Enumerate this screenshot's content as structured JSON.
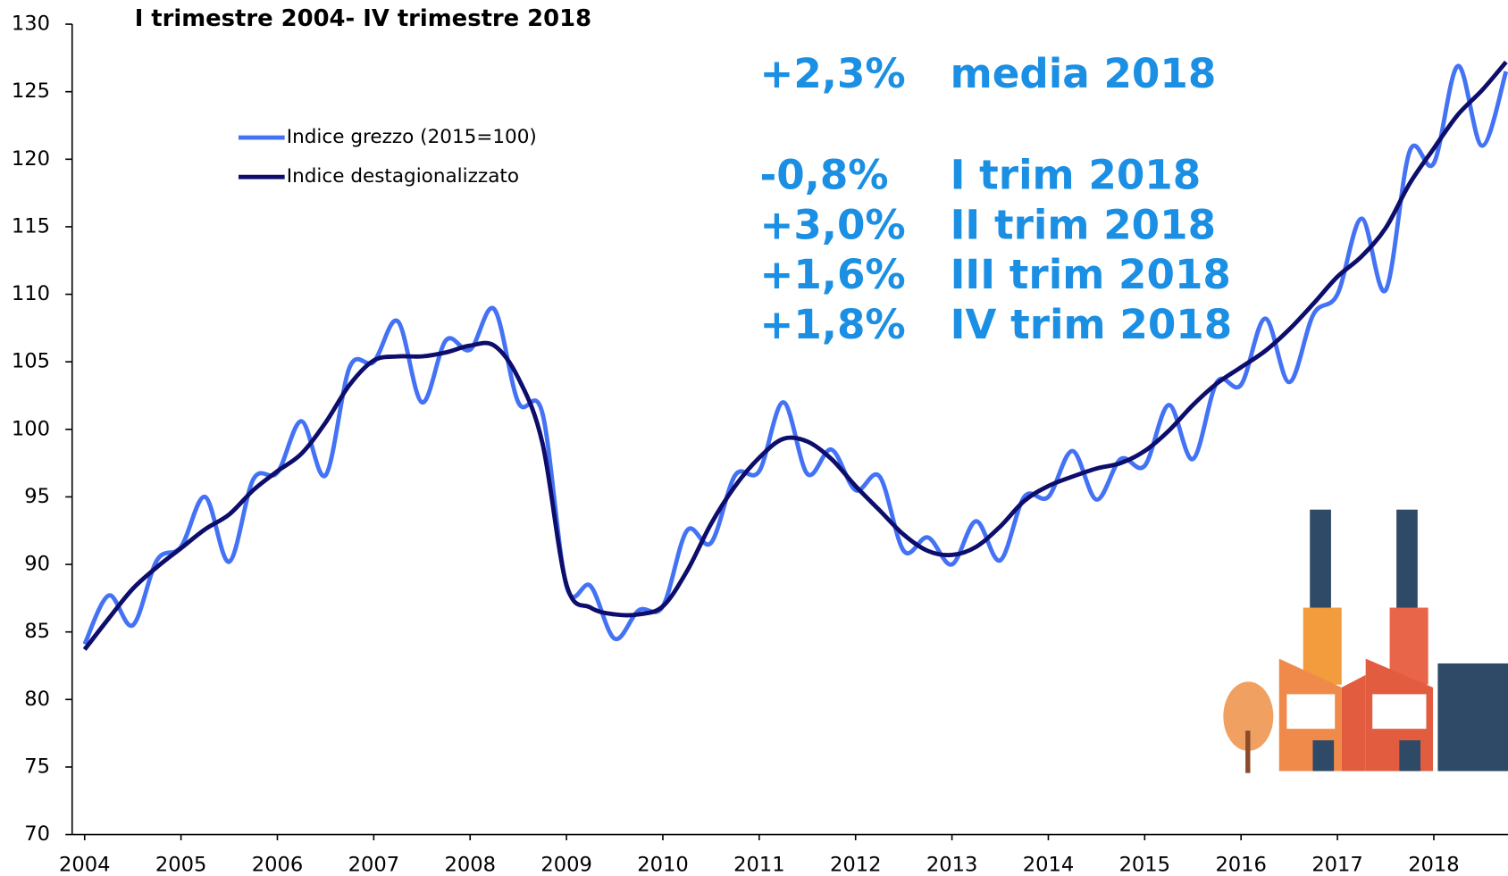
{
  "chart_data": {
    "type": "line",
    "title": "I trimestre 2004- IV trimestre 2018",
    "x": [
      2004,
      2004.25,
      2004.5,
      2004.75,
      2005,
      2005.25,
      2005.5,
      2005.75,
      2006,
      2006.25,
      2006.5,
      2006.75,
      2007,
      2007.25,
      2007.5,
      2007.75,
      2008,
      2008.25,
      2008.5,
      2008.75,
      2009,
      2009.25,
      2009.5,
      2009.75,
      2010,
      2010.25,
      2010.5,
      2010.75,
      2011,
      2011.25,
      2011.5,
      2011.75,
      2012,
      2012.25,
      2012.5,
      2012.75,
      2013,
      2013.25,
      2013.5,
      2013.75,
      2014,
      2014.25,
      2014.5,
      2014.75,
      2015,
      2015.25,
      2015.5,
      2015.75,
      2016,
      2016.25,
      2016.5,
      2016.75,
      2017,
      2017.25,
      2017.5,
      2017.75,
      2018,
      2018.25,
      2018.5,
      2018.75
    ],
    "series": [
      {
        "name": "Indice grezzo (2015=100)",
        "color": "#4472f5",
        "values": [
          84.1,
          87.7,
          85.5,
          90.3,
          91.3,
          95.0,
          90.2,
          96.3,
          96.8,
          100.6,
          96.6,
          104.6,
          105.0,
          108.0,
          102.0,
          106.6,
          105.9,
          108.9,
          102.0,
          101.2,
          88.4,
          88.4,
          84.5,
          86.6,
          86.9,
          92.5,
          91.6,
          96.6,
          96.9,
          102.0,
          96.7,
          98.5,
          95.5,
          96.5,
          91.0,
          92.0,
          90.0,
          93.2,
          90.3,
          95.0,
          95.0,
          98.4,
          94.8,
          97.8,
          97.3,
          101.8,
          97.8,
          103.5,
          103.3,
          108.2,
          103.5,
          108.5,
          110.0,
          115.6,
          110.3,
          120.6,
          119.7,
          126.9,
          121.0,
          126.5
        ]
      },
      {
        "name": "Indice destagionalizzato",
        "color": "#0d0d6b",
        "values": [
          83.7,
          86.0,
          88.2,
          89.8,
          91.2,
          92.6,
          93.7,
          95.5,
          96.9,
          98.2,
          100.5,
          103.3,
          105.1,
          105.4,
          105.4,
          105.7,
          106.2,
          106.2,
          103.8,
          99.0,
          88.5,
          86.8,
          86.3,
          86.3,
          86.9,
          89.5,
          93.0,
          95.8,
          97.9,
          99.3,
          99.1,
          97.8,
          95.8,
          94.0,
          92.2,
          91.0,
          90.7,
          91.3,
          92.8,
          94.7,
          95.8,
          96.5,
          97.1,
          97.5,
          98.4,
          99.9,
          101.8,
          103.4,
          104.6,
          105.8,
          107.4,
          109.3,
          111.3,
          112.8,
          114.9,
          118.2,
          120.8,
          123.3,
          125.1,
          127.2
        ]
      }
    ],
    "xlim": [
      2004,
      2018.75
    ],
    "xticks": [
      2004,
      2005,
      2006,
      2007,
      2008,
      2009,
      2010,
      2011,
      2012,
      2013,
      2014,
      2015,
      2016,
      2017,
      2018
    ],
    "ylim": [
      70,
      130
    ],
    "yticks": [
      70,
      75,
      80,
      85,
      90,
      95,
      100,
      105,
      110,
      115,
      120,
      125,
      130
    ],
    "annotation_color": "#1a8fe3",
    "annotations": [
      {
        "change": "+2,3%",
        "label": "media 2018"
      },
      {
        "change": "-0,8%",
        "label": "I trim 2018"
      },
      {
        "change": "+3,0%",
        "label": "II trim 2018"
      },
      {
        "change": "+1,6%",
        "label": "III trim 2018"
      },
      {
        "change": "+1,8%",
        "label": "IV trim 2018"
      }
    ]
  }
}
